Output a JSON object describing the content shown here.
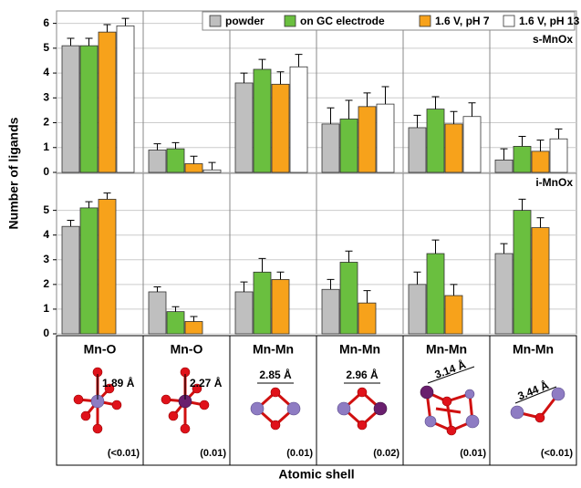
{
  "y_label": "Number of ligands",
  "x_label": "Atomic shell",
  "chart_data": [
    {
      "type": "bar",
      "panel_label": "s-MnOx",
      "ylim": [
        0,
        6.5
      ],
      "yticks": [
        0,
        1,
        2,
        3,
        4,
        5,
        6
      ],
      "grid": true,
      "legend": "top-right",
      "series": [
        {
          "name": "powder",
          "color": "#bfbfbf",
          "values": [
            5.1,
            0.9,
            3.6,
            1.95,
            1.8,
            0.5
          ],
          "errors": [
            0.3,
            0.25,
            0.4,
            0.65,
            0.5,
            0.45
          ]
        },
        {
          "name": "on GC electrode",
          "color": "#6abf3f",
          "values": [
            5.1,
            0.95,
            4.15,
            2.15,
            2.55,
            1.05
          ],
          "errors": [
            0.3,
            0.25,
            0.4,
            0.75,
            0.5,
            0.4
          ]
        },
        {
          "name": "1.6 V, pH 7",
          "color": "#f7a21b",
          "values": [
            5.65,
            0.35,
            3.55,
            2.65,
            1.95,
            0.85
          ],
          "errors": [
            0.3,
            0.3,
            0.5,
            0.55,
            0.5,
            0.45
          ]
        },
        {
          "name": "1.6 V, pH 13",
          "color": "#ffffff",
          "values": [
            5.9,
            0.1,
            4.25,
            2.75,
            2.25,
            1.35
          ],
          "errors": [
            0.3,
            0.3,
            0.5,
            0.7,
            0.55,
            0.4
          ]
        }
      ]
    },
    {
      "type": "bar",
      "panel_label": "i-MnOx",
      "ylim": [
        0,
        6.5
      ],
      "yticks": [
        0,
        1,
        2,
        3,
        4,
        5
      ],
      "grid": true,
      "categories": [
        "Mn-O",
        "Mn-O",
        "Mn-Mn",
        "Mn-Mn",
        "Mn-Mn",
        "Mn-Mn"
      ],
      "series": [
        {
          "color": "#bfbfbf",
          "values": [
            4.35,
            1.7,
            1.7,
            1.8,
            2.0,
            3.25
          ],
          "errors": [
            0.25,
            0.2,
            0.4,
            0.4,
            0.5,
            0.4
          ]
        },
        {
          "color": "#6abf3f",
          "values": [
            5.1,
            0.9,
            2.5,
            2.9,
            3.25,
            5.0
          ],
          "errors": [
            0.25,
            0.2,
            0.55,
            0.45,
            0.55,
            0.45
          ]
        },
        {
          "color": "#f7a21b",
          "values": [
            5.45,
            0.5,
            2.2,
            1.25,
            1.55,
            4.3
          ],
          "errors": [
            0.25,
            0.2,
            0.3,
            0.5,
            0.45,
            0.4
          ]
        }
      ]
    }
  ],
  "shells": [
    {
      "distance": "1.89 Å",
      "note": "(<0.01)"
    },
    {
      "distance": "2.27 Å",
      "note": "(0.01)"
    },
    {
      "distance": "2.85 Å",
      "note": "(0.01)"
    },
    {
      "distance": "2.96 Å",
      "note": "(0.02)"
    },
    {
      "distance": "3.14 Å",
      "note": "(0.01)"
    },
    {
      "distance": "3.44 Å",
      "note": "(<0.01)"
    }
  ]
}
